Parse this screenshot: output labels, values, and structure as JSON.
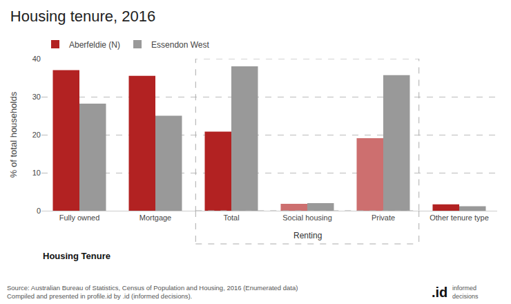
{
  "chart_data": {
    "type": "bar",
    "title": "Housing tenure, 2016",
    "xlabel": "Housing Tenure",
    "ylabel": "% of total households",
    "categories": [
      "Fully owned",
      "Mortgage",
      "Total",
      "Social housing",
      "Private",
      "Other tenure type"
    ],
    "series": [
      {
        "name": "Aberfeldie (N)",
        "colors": [
          "#b22222",
          "#b22222",
          "#b22222",
          "#cd6f6f",
          "#cd6f6f",
          "#b22222"
        ],
        "values": [
          37.0,
          35.5,
          20.8,
          1.8,
          19.1,
          1.7
        ]
      },
      {
        "name": "Essendon West",
        "color": "#999999",
        "values": [
          28.2,
          25.0,
          38.0,
          2.0,
          35.7,
          1.2
        ]
      }
    ],
    "ylim": [
      0,
      40
    ],
    "yticks": [
      0,
      10,
      20,
      30,
      40
    ],
    "grid": true,
    "legend": "upper left",
    "annotations": [
      {
        "text": "Renting",
        "categories": [
          "Total",
          "Social housing",
          "Private"
        ]
      },
      {
        "text": "Source: Australian Bureau of Statistics, Census of Population and Housing, 2016 (Enumerated data)\nCompiled and presented in profile.id by .id (informed decisions)."
      },
      {
        "text": ".id"
      },
      {
        "text": "informed\ndecisions"
      }
    ]
  }
}
